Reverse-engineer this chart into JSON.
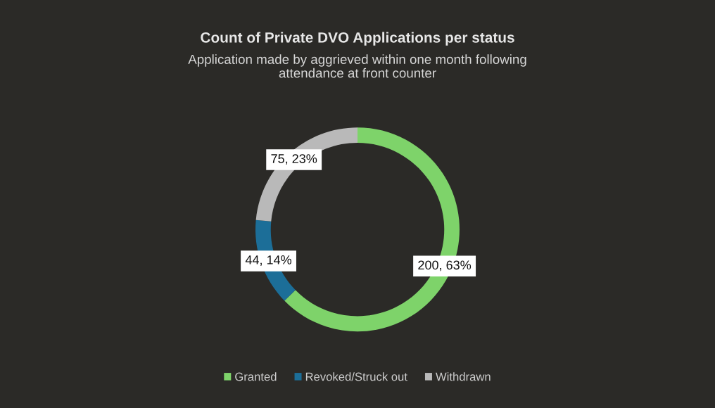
{
  "chart_data": {
    "type": "donut",
    "title": "Count of Private DVO Applications per status",
    "subtitle": "Application made by aggrieved within one month following\nattendance at front counter",
    "categories": [
      "Granted",
      "Revoked/Struck out",
      "Withdrawn"
    ],
    "values": [
      200,
      44,
      75
    ],
    "colors": [
      "#7ed36a",
      "#1c6e98",
      "#b9b9b9"
    ],
    "value_labels": [
      "200, 63%",
      "44, 14%",
      "75, 23%"
    ],
    "legend": "bottom"
  }
}
